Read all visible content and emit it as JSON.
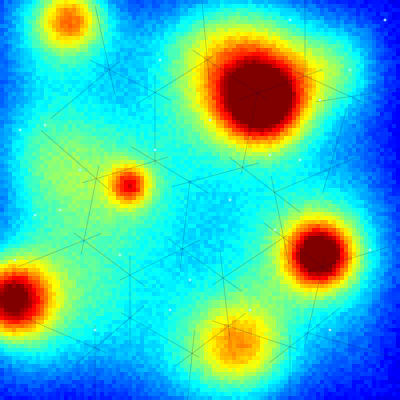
{
  "image": {
    "kind": "density-heatmap",
    "colormap": "jet",
    "colormap_stops": [
      "#00008f",
      "#0000ff",
      "#0080ff",
      "#00ffff",
      "#80ff80",
      "#ffff00",
      "#ff8000",
      "#ff0000",
      "#800000"
    ],
    "background_color": "#0000b8",
    "sparkle_color": "#aefaff",
    "facet_color": "#000040",
    "visible_text": []
  }
}
